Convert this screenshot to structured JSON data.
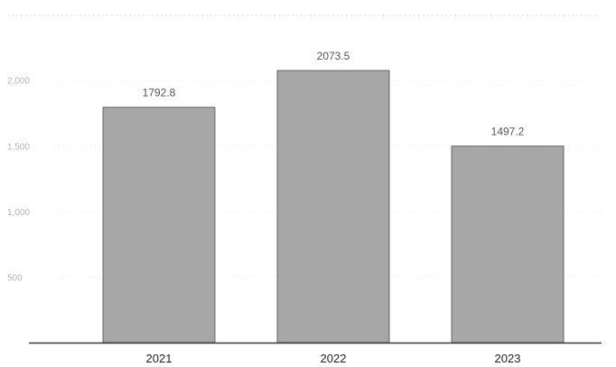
{
  "chart_data": {
    "type": "bar",
    "title": "",
    "xlabel": "",
    "ylabel": "",
    "categories": [
      "2021",
      "2022",
      "2023"
    ],
    "values": [
      1792.8,
      2073.5,
      1497.2
    ],
    "data_labels": [
      "1792.8",
      "2073.5",
      "1497.2"
    ],
    "ylim": [
      0,
      2073.5
    ],
    "yticks": [
      500,
      1000,
      1500,
      2000
    ],
    "ytick_labels": [
      "500",
      "1,000",
      "1,500",
      "2,000"
    ],
    "grid": true,
    "legend": "none",
    "bar_color": "#a7a7a7"
  }
}
